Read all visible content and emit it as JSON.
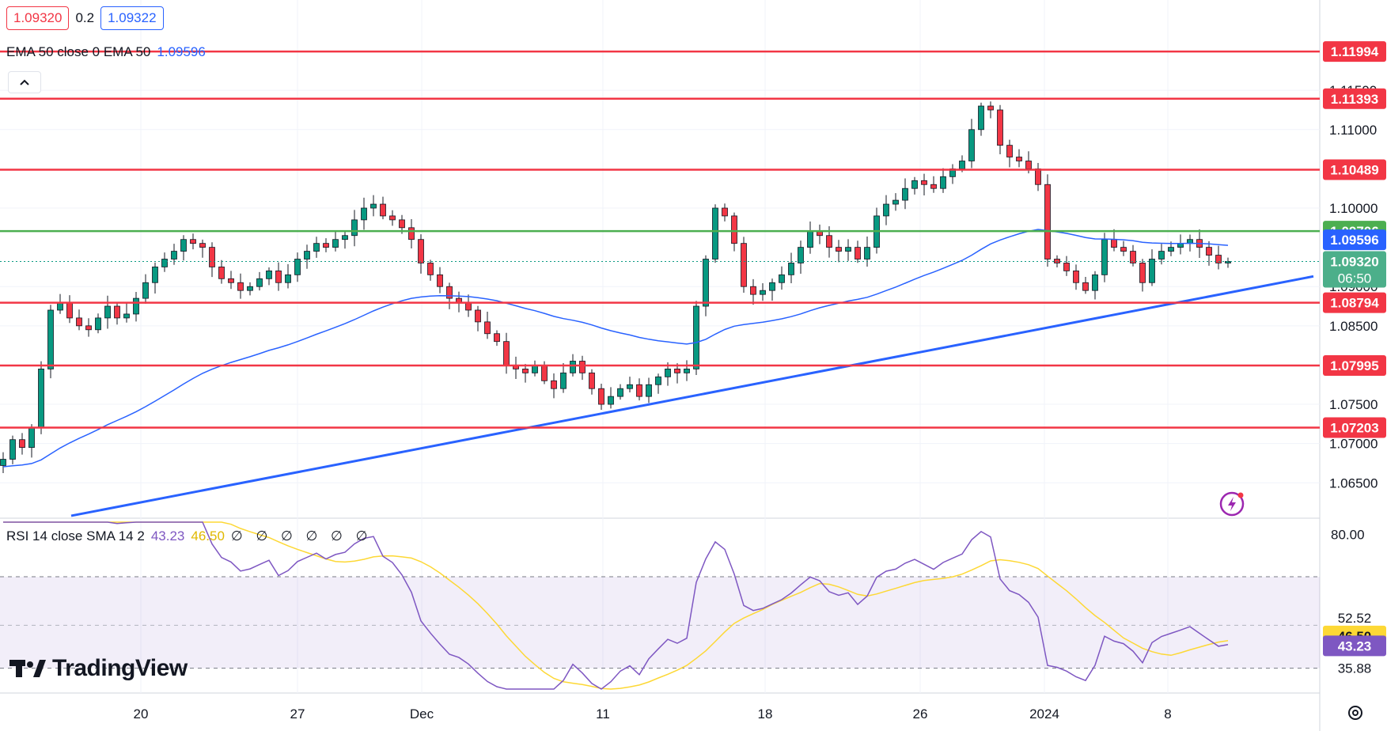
{
  "header": {
    "bid": "1.09320",
    "spread": "0.2",
    "ask": "1.09322",
    "ema_label": "EMA 50 close 0 EMA 50",
    "ema_value": "1.09596"
  },
  "rsi_header": {
    "label": "RSI 14 close SMA 14 2",
    "rsi_value": "43.23",
    "sma_value": "46.50",
    "extras": "∅ ∅ ∅ ∅ ∅ ∅"
  },
  "logo": {
    "text": "TradingView"
  },
  "colors": {
    "up": "#089981",
    "down": "#f23645",
    "ema": "#2962ff",
    "support": "#f23645",
    "green_level": "#4caf50",
    "trendline": "#2962ff",
    "rsi": "#7e57c2",
    "rsi_sma": "#fdd835",
    "rsi_band": "#7e57c2"
  },
  "icons": {
    "collapse": "chevron-up-icon",
    "settings": "gear-icon",
    "replay": "lightning-icon"
  },
  "chart_data": [
    {
      "type": "candlestick",
      "y_range": [
        1.0615,
        1.1255
      ],
      "price_ticks": [
        "1.11500",
        "1.11000",
        "1.10000",
        "1.09000",
        "1.08500",
        "1.07500",
        "1.07000",
        "1.06500"
      ],
      "x_ticks": [
        "20",
        "27",
        "Dec",
        "11",
        "18",
        "26",
        "2024",
        "8"
      ],
      "horizontal_levels": [
        {
          "label": "1.11994",
          "value": 1.11994,
          "color": "#f23645"
        },
        {
          "label": "1.11393",
          "value": 1.11393,
          "color": "#f23645"
        },
        {
          "label": "1.10489",
          "value": 1.10489,
          "color": "#f23645"
        },
        {
          "label": "1.09706",
          "value": 1.09706,
          "color": "#4caf50"
        },
        {
          "label": "1.08794",
          "value": 1.08794,
          "color": "#f23645"
        },
        {
          "label": "1.07995",
          "value": 1.07995,
          "color": "#f23645"
        },
        {
          "label": "1.07203",
          "value": 1.07203,
          "color": "#f23645"
        }
      ],
      "last_price": {
        "label": "1.09320",
        "value": 1.0932,
        "countdown": "06:50"
      },
      "ema": {
        "label": "1.09596",
        "value": 1.09596
      },
      "trendline": {
        "from": [
          0,
          1.0608
        ],
        "to": [
          1.0,
          1.0913
        ]
      },
      "close_path": [
        1.068,
        1.0705,
        1.0695,
        1.072,
        1.0795,
        1.087,
        1.088,
        1.086,
        1.085,
        1.0845,
        1.086,
        1.0875,
        1.086,
        1.0865,
        1.0885,
        1.0905,
        1.0925,
        1.0935,
        1.0945,
        1.096,
        1.0955,
        1.095,
        1.0925,
        1.091,
        1.0905,
        1.0895,
        1.09,
        1.091,
        1.092,
        1.0905,
        1.0915,
        1.0935,
        1.0945,
        1.0955,
        1.095,
        1.096,
        1.0965,
        1.0985,
        1.1,
        1.1005,
        1.099,
        1.0985,
        1.0975,
        1.096,
        1.093,
        1.0915,
        1.09,
        1.0885,
        1.088,
        1.087,
        1.0855,
        1.084,
        1.083,
        1.08,
        1.0795,
        1.079,
        1.08,
        1.078,
        1.077,
        1.079,
        1.0805,
        1.079,
        1.077,
        1.075,
        1.076,
        1.077,
        1.0775,
        1.076,
        1.0775,
        1.0785,
        1.0795,
        1.079,
        1.0795,
        1.0875,
        1.0935,
        1.1,
        1.099,
        1.0955,
        1.09,
        1.089,
        1.0895,
        1.0905,
        1.0915,
        1.093,
        1.095,
        1.097,
        1.0965,
        1.095,
        1.0945,
        1.095,
        1.0935,
        1.095,
        1.099,
        1.1005,
        1.101,
        1.1025,
        1.1035,
        1.103,
        1.1025,
        1.104,
        1.105,
        1.106,
        1.11,
        1.113,
        1.1125,
        1.108,
        1.1065,
        1.106,
        1.105,
        1.103,
        1.0935,
        1.093,
        1.092,
        1.0905,
        1.0895,
        1.0915,
        1.096,
        1.095,
        1.0945,
        1.093,
        1.0905,
        1.0935,
        1.0945,
        1.095,
        1.0955,
        1.096,
        1.095,
        1.094,
        1.093,
        1.0932
      ]
    },
    {
      "type": "line",
      "title": "RSI 14 close SMA 14 2",
      "y_range": [
        29,
        84
      ],
      "ticks": [
        "80.00"
      ],
      "band": [
        35.88,
        66
      ],
      "levels": [
        {
          "label": "52.52",
          "value": 52.52
        },
        {
          "label": "46.50",
          "value": 46.5
        },
        {
          "label": "43.23",
          "value": 43.23
        },
        {
          "label": "35.88",
          "value": 35.88
        }
      ]
    }
  ]
}
